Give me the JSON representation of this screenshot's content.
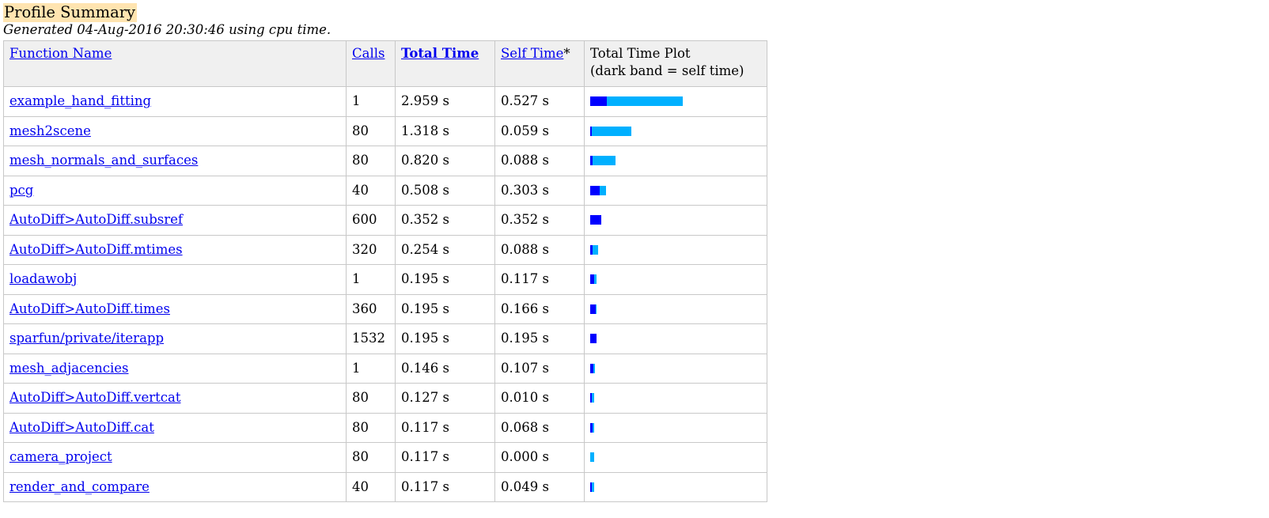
{
  "title": "Profile Summary",
  "subtitle": "Generated 04-Aug-2016 20:30:46 using cpu time.",
  "colors": {
    "title_bg": "#ffe4b0",
    "header_bg": "#f0f0f0",
    "link": "#0000ee",
    "self_time_bar": "#0000ff",
    "total_time_bar": "#00b0ff"
  },
  "table": {
    "headers": {
      "function_name": "Function Name",
      "calls": "Calls",
      "total_time": "Total Time",
      "self_time": "Self Time",
      "self_time_suffix": "*",
      "plot_line1": "Total Time Plot",
      "plot_line2": "(dark band = self time)"
    },
    "rows": [
      {
        "name": "example_hand_fitting",
        "calls": "1",
        "total": "2.959 s",
        "self": "0.527 s"
      },
      {
        "name": "mesh2scene",
        "calls": "80",
        "total": "1.318 s",
        "self": "0.059 s"
      },
      {
        "name": "mesh_normals_and_surfaces",
        "calls": "80",
        "total": "0.820 s",
        "self": "0.088 s"
      },
      {
        "name": "pcg",
        "calls": "40",
        "total": "0.508 s",
        "self": "0.303 s"
      },
      {
        "name": "AutoDiff>AutoDiff.subsref",
        "calls": "600",
        "total": "0.352 s",
        "self": "0.352 s"
      },
      {
        "name": "AutoDiff>AutoDiff.mtimes",
        "calls": "320",
        "total": "0.254 s",
        "self": "0.088 s"
      },
      {
        "name": "loadawobj",
        "calls": "1",
        "total": "0.195 s",
        "self": "0.117 s"
      },
      {
        "name": "AutoDiff>AutoDiff.times",
        "calls": "360",
        "total": "0.195 s",
        "self": "0.166 s"
      },
      {
        "name": "sparfun/private/iterapp",
        "calls": "1532",
        "total": "0.195 s",
        "self": "0.195 s"
      },
      {
        "name": "mesh_adjacencies",
        "calls": "1",
        "total": "0.146 s",
        "self": "0.107 s"
      },
      {
        "name": "AutoDiff>AutoDiff.vertcat",
        "calls": "80",
        "total": "0.127 s",
        "self": "0.010 s"
      },
      {
        "name": "AutoDiff>AutoDiff.cat",
        "calls": "80",
        "total": "0.117 s",
        "self": "0.068 s"
      },
      {
        "name": "camera_project",
        "calls": "80",
        "total": "0.117 s",
        "self": "0.000 s"
      },
      {
        "name": "render_and_compare",
        "calls": "40",
        "total": "0.117 s",
        "self": "0.049 s"
      }
    ]
  }
}
